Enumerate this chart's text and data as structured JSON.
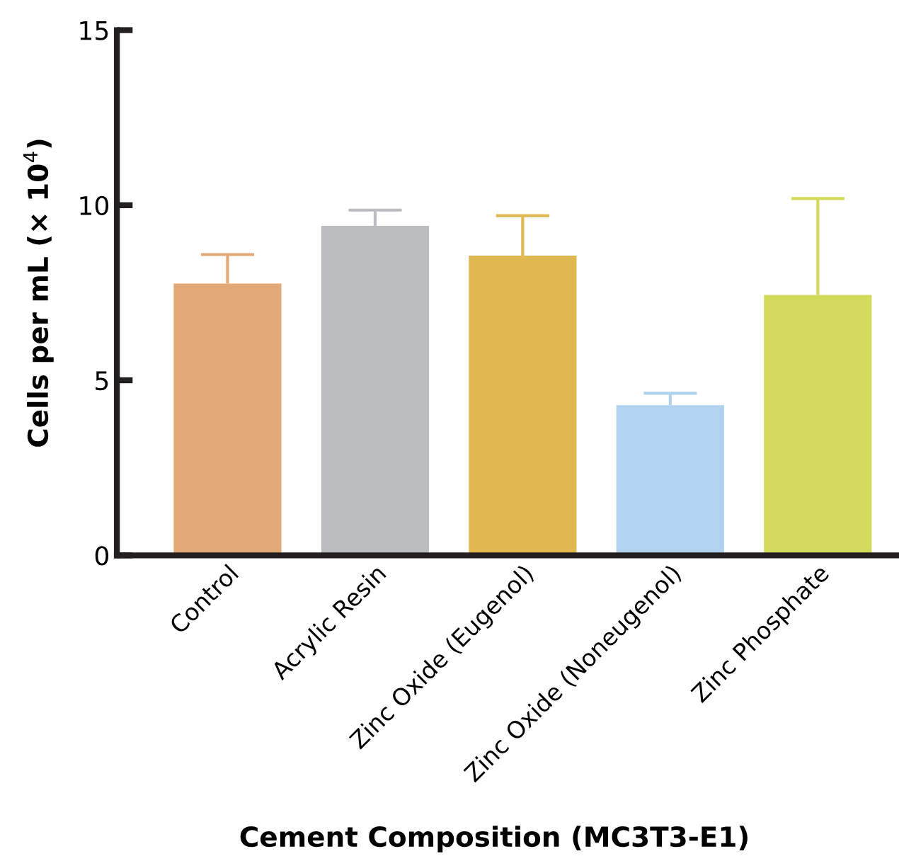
{
  "chart_data": {
    "type": "bar",
    "xlabel": "Cement Composition (MC3T3-E1)",
    "ylabel": "Cells per mL (× 10$^{4}$)",
    "categories": [
      "Control",
      "Acrylic Resin",
      "Zinc Oxide (Eugenol)",
      "Zinc Oxide (Noneugenol)",
      "Zinc Phosphate"
    ],
    "values": [
      7.76,
      9.41,
      8.56,
      4.29,
      7.44
    ],
    "errors": [
      [
        7.76,
        8.59
      ],
      [
        9.41,
        9.86
      ],
      [
        8.56,
        9.7
      ],
      [
        4.29,
        4.63
      ],
      [
        7.44,
        10.19
      ]
    ],
    "colors": [
      "#e2a976",
      "#bbbcc0",
      "#e0b850",
      "#b0d2ef",
      "#d4da5c"
    ],
    "ylim": [
      0,
      15
    ],
    "yticks": [
      0,
      5,
      10,
      15
    ],
    "grid": false,
    "legend": false
  }
}
